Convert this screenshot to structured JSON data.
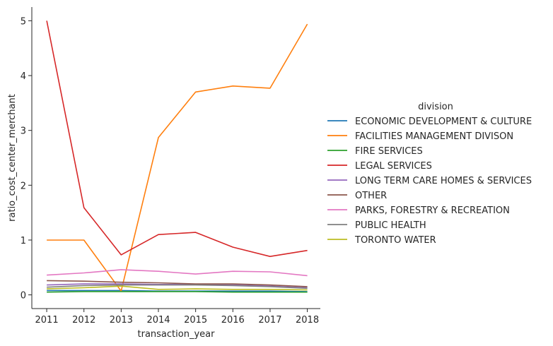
{
  "chart_data": {
    "type": "line",
    "xlabel": "transaction_year",
    "ylabel": "ratio_cost_center_merchant",
    "x": [
      2011,
      2012,
      2013,
      2014,
      2015,
      2016,
      2017,
      2018
    ],
    "xlim": [
      2010.6,
      2018.35
    ],
    "ylim": [
      -0.25,
      5.25
    ],
    "yticks": [
      0,
      1,
      2,
      3,
      4,
      5
    ],
    "grid": false,
    "legend_title": "division",
    "legend_placement": "right",
    "series": [
      {
        "name": "ECONOMIC DEVELOPMENT & CULTURE",
        "color": "#1f77b4",
        "values": [
          0.08,
          0.08,
          0.08,
          0.07,
          0.07,
          0.07,
          0.07,
          0.06
        ]
      },
      {
        "name": "FACILITIES MANAGEMENT DIVISON",
        "color": "#ff7f0e",
        "values": [
          1.0,
          1.0,
          0.07,
          2.87,
          3.7,
          3.81,
          3.77,
          4.94
        ]
      },
      {
        "name": "FIRE SERVICES",
        "color": "#2ca02c",
        "values": [
          0.05,
          0.06,
          0.06,
          0.06,
          0.06,
          0.05,
          0.05,
          0.05
        ]
      },
      {
        "name": "LEGAL SERVICES",
        "color": "#d62728",
        "values": [
          5.0,
          1.59,
          0.73,
          1.1,
          1.14,
          0.87,
          0.7,
          0.81
        ]
      },
      {
        "name": "LONG TERM CARE HOMES & SERVICES",
        "color": "#9467bd",
        "values": [
          0.18,
          0.2,
          0.2,
          0.19,
          0.19,
          0.18,
          0.16,
          0.13
        ]
      },
      {
        "name": "OTHER",
        "color": "#8c564b",
        "values": [
          0.26,
          0.25,
          0.23,
          0.22,
          0.2,
          0.2,
          0.18,
          0.15
        ]
      },
      {
        "name": "PARKS, FORESTRY & RECREATION",
        "color": "#e377c2",
        "values": [
          0.36,
          0.4,
          0.46,
          0.43,
          0.38,
          0.43,
          0.42,
          0.35
        ]
      },
      {
        "name": "PUBLIC HEALTH",
        "color": "#7f7f7f",
        "values": [
          0.14,
          0.17,
          0.18,
          0.18,
          0.18,
          0.17,
          0.15,
          0.12
        ]
      },
      {
        "name": "TORONTO WATER",
        "color": "#bcbd22",
        "values": [
          0.11,
          0.13,
          0.16,
          0.1,
          0.11,
          0.1,
          0.1,
          0.09
        ]
      }
    ]
  }
}
